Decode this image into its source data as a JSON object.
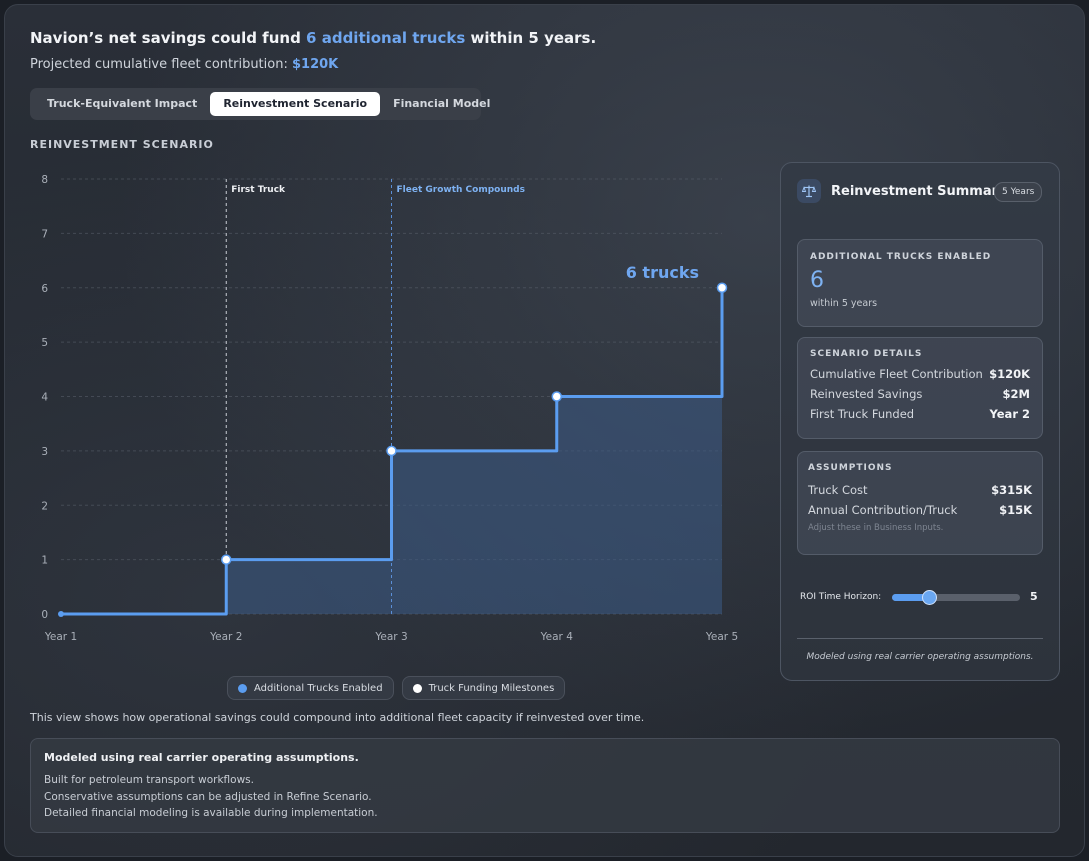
{
  "header": {
    "headline_prefix": "Navion’s net savings could fund",
    "headline_highlight": "6 additional trucks",
    "headline_suffix": "within 5 years.",
    "subline_prefix": "Projected cumulative fleet contribution:",
    "subline_value": "$120K"
  },
  "tabs": [
    {
      "label": "Truck-Equivalent Impact",
      "active": false
    },
    {
      "label": "Reinvestment Scenario",
      "active": true
    },
    {
      "label": "Financial Model",
      "active": false
    }
  ],
  "section_title": "REINVESTMENT SCENARIO",
  "colors": {
    "accent": "#5b9df0",
    "area": "#3c5b86",
    "marker_fill": "#ffffff"
  },
  "chart_data": {
    "type": "line",
    "step": true,
    "x": [
      "Year 1",
      "Year 2",
      "Year 3",
      "Year 4",
      "Year 5"
    ],
    "ylim": [
      0,
      8
    ],
    "yticks": [
      0,
      1,
      2,
      3,
      4,
      5,
      6,
      7,
      8
    ],
    "grid": true,
    "series": [
      {
        "name": "Additional Trucks Enabled",
        "values": [
          0,
          1,
          3,
          4,
          6
        ]
      }
    ],
    "markers": [
      "Year 2",
      "Year 3",
      "Year 4",
      "Year 5"
    ],
    "annotations": [
      {
        "x": "Year 2",
        "label": "First Truck"
      },
      {
        "x": "Year 3",
        "label": "Fleet Growth Compounds"
      }
    ],
    "end_label": "6 trucks",
    "legend": [
      "Additional Trucks Enabled",
      "Truck Funding Milestones"
    ],
    "legend_position": "bottom"
  },
  "caption": "This view shows how operational savings could compound into additional fleet capacity if reinvested over time.",
  "notes": {
    "title": "Modeled using real carrier operating assumptions.",
    "lines": [
      "Built for petroleum transport workflows.",
      "Conservative assumptions can be adjusted in Refine Scenario.",
      "Detailed financial modeling is available during implementation."
    ]
  },
  "panel": {
    "icon": "scale-icon",
    "title": "Reinvestment Summary",
    "badge": "5 Years",
    "trucks_card": {
      "label": "ADDITIONAL TRUCKS ENABLED",
      "value": "6",
      "sub": "within 5 years"
    },
    "details": {
      "label": "SCENARIO DETAILS",
      "rows": [
        {
          "label": "Cumulative Fleet Contribution",
          "value": "$120K"
        },
        {
          "label": "Reinvested Savings",
          "value": "$2M"
        },
        {
          "label": "First Truck Funded",
          "value": "Year 2"
        }
      ]
    },
    "assumptions": {
      "label": "ASSUMPTIONS",
      "rows": [
        {
          "label": "Truck Cost",
          "value": "$315K"
        },
        {
          "label": "Annual Contribution/Truck",
          "value": "$15K"
        }
      ],
      "hint": "Adjust these in Business Inputs."
    },
    "slider": {
      "label": "ROI Time Horizon:",
      "value": "5",
      "fraction": 0.3
    },
    "footer": "Modeled using real carrier operating assumptions."
  }
}
